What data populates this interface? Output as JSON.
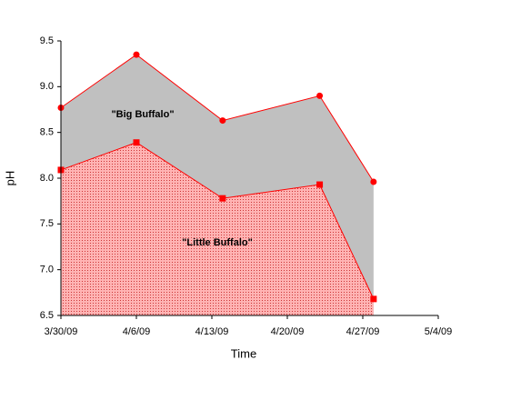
{
  "chart_data": {
    "type": "area",
    "x_label": "Time",
    "y_label": "pH",
    "x": [
      "2009-03-30",
      "2009-04-06",
      "2009-04-14",
      "2009-04-23",
      "2009-04-28"
    ],
    "series": [
      {
        "name": "\"Big Buffalo\"",
        "color": "#c0c0c0",
        "line_color": "#ff0000",
        "marker": "circle",
        "values": [
          8.77,
          9.35,
          8.63,
          8.9,
          7.96
        ]
      },
      {
        "name": "\"Little Buffalo\"",
        "color": "#ff9999",
        "line_color": "#ff0000",
        "marker": "square",
        "values": [
          8.09,
          8.39,
          7.78,
          7.93,
          6.68
        ]
      }
    ],
    "xlim": [
      "2009-03-30",
      "2009-05-04"
    ],
    "xticks": [
      {
        "value": "2009-03-30",
        "label": "3/30/09"
      },
      {
        "value": "2009-04-06",
        "label": "4/6/09"
      },
      {
        "value": "2009-04-13",
        "label": "4/13/09"
      },
      {
        "value": "2009-04-20",
        "label": "4/20/09"
      },
      {
        "value": "2009-04-27",
        "label": "4/27/09"
      },
      {
        "value": "2009-05-04",
        "label": "5/4/09"
      }
    ],
    "ylim": [
      6.5,
      9.5
    ],
    "yticks": [
      6.5,
      {
        "value": 7,
        "label": "7.0"
      },
      7.5,
      {
        "value": 8,
        "label": "8.0"
      },
      8.5,
      {
        "value": 9,
        "label": "9.0"
      },
      9.5
    ]
  }
}
